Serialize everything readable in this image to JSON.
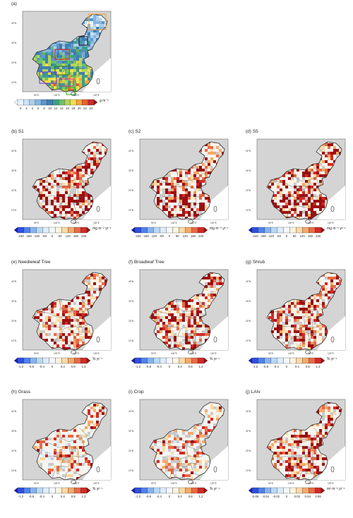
{
  "figure": {
    "panels": [
      {
        "id": "a",
        "label": "(a)",
        "unit": "g m⁻²",
        "ticks": [
          "0",
          "2",
          "4",
          "6",
          "8",
          "10",
          "12",
          "14",
          "16",
          "18",
          "20",
          "22",
          "24"
        ],
        "palette": [
          "#ffffff",
          "#e9f3fb",
          "#cfe4f4",
          "#acd0ec",
          "#86b6de",
          "#5b96cc",
          "#3f7fb5",
          "#3aa08a",
          "#6ec06a",
          "#b4d657",
          "#f3e04b",
          "#f6a53a",
          "#e8622c",
          "#c92b2b",
          "#8e1212"
        ]
      },
      {
        "id": "b",
        "label": "(b) S1",
        "unit": "mg m⁻² yr⁻¹",
        "ticks": [
          "-240",
          "-180",
          "-120",
          "-60",
          "0",
          "60",
          "120",
          "180",
          "240"
        ],
        "palette": "div"
      },
      {
        "id": "c",
        "label": "(c) S2",
        "unit": "mg m⁻² yr⁻¹",
        "ticks": [
          "-240",
          "-180",
          "-120",
          "-60",
          "0",
          "60",
          "120",
          "180",
          "240"
        ],
        "palette": "div"
      },
      {
        "id": "d",
        "label": "(d) S5",
        "unit": "mg m⁻² yr⁻¹",
        "ticks": [
          "-240",
          "-180",
          "-120",
          "-60",
          "0",
          "60",
          "120",
          "180",
          "240"
        ],
        "palette": "div"
      },
      {
        "id": "e",
        "label": "(e) Needleleaf Tree",
        "unit": "% yr⁻¹",
        "ticks": [
          "-1.2",
          "-0.8",
          "-0.4",
          "0",
          "0.4",
          "0.8",
          "1.2"
        ],
        "palette": "div"
      },
      {
        "id": "f",
        "label": "(f) Broadleaf Tree",
        "unit": "% yr⁻¹",
        "ticks": [
          "-1.2",
          "-0.8",
          "-0.4",
          "0",
          "0.4",
          "0.8",
          "1.2"
        ],
        "palette": "div"
      },
      {
        "id": "g",
        "label": "(g) Shrub",
        "unit": "% yr⁻¹",
        "ticks": [
          "-1.2",
          "-0.8",
          "-0.4",
          "0",
          "0.4",
          "0.8",
          "1.2"
        ],
        "palette": "div"
      },
      {
        "id": "h",
        "label": "(h) Grass",
        "unit": "% yr⁻¹",
        "ticks": [
          "-1.2",
          "-0.8",
          "-0.4",
          "0",
          "0.4",
          "0.8",
          "1.2"
        ],
        "palette": "div"
      },
      {
        "id": "i",
        "label": "(i) Crop",
        "unit": "% yr⁻¹",
        "ticks": [
          "-1.2",
          "-0.8",
          "-0.4",
          "0",
          "0.4",
          "0.8",
          "1.2"
        ],
        "palette": "div"
      },
      {
        "id": "j",
        "label": "(j) LAIv",
        "unit": "m² m⁻² yr⁻¹",
        "ticks": [
          "-0.06",
          "-0.04",
          "-0.02",
          "0",
          "0.02",
          "0.04",
          "0.06"
        ],
        "palette": "div"
      }
    ],
    "diverging_palette": [
      "#1a1ab5",
      "#2f4fe0",
      "#4f82ee",
      "#86b3f2",
      "#b8d8f6",
      "#dcecfb",
      "#f4f8fd",
      "#fdf4e0",
      "#fbd9a6",
      "#f4a96a",
      "#ea6a44",
      "#d22a28",
      "#9c0e10"
    ],
    "map_colors": {
      "ocean": "#ffffff",
      "land_bg": "#d4d4d4",
      "china": "#f6f4ef",
      "no_data": "#c9c9c9",
      "border": "#333333"
    },
    "lat_labels": [
      "40°N",
      "30°N",
      "20°N",
      "10°N"
    ],
    "lon_labels": [
      "90°E",
      "100°E",
      "110°E",
      "120°E"
    ]
  }
}
